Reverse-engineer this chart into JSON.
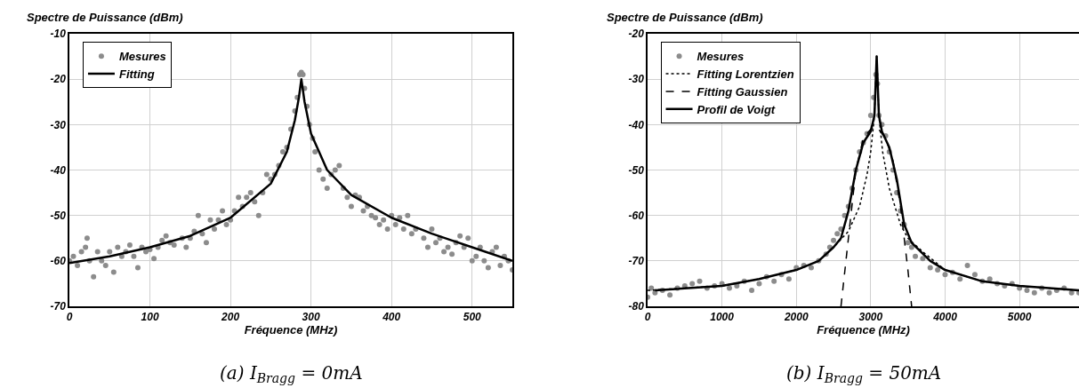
{
  "chart_data": [
    {
      "type": "scatter",
      "ylabel": "Spectre de Puissance (dBm)",
      "xlabel": "Fréquence (MHz)",
      "annotations": [
        "(a) I$_{Bragg}$ = 0mA"
      ],
      "xlim": [
        0,
        550
      ],
      "xticks": [
        0,
        100,
        200,
        300,
        400,
        500
      ],
      "ylim": [
        -70,
        -10
      ],
      "yticks": [
        -70,
        -60,
        -50,
        -40,
        -30,
        -20,
        -10
      ],
      "grid": true,
      "legend": "top left",
      "series": [
        {
          "name": "Mesures",
          "type": "scatter",
          "marker": "circle",
          "color": "#8c8c8c",
          "x": [
            0,
            5,
            10,
            15,
            20,
            22,
            25,
            30,
            35,
            40,
            45,
            50,
            55,
            60,
            65,
            70,
            75,
            80,
            85,
            90,
            95,
            100,
            105,
            110,
            115,
            120,
            125,
            130,
            140,
            145,
            150,
            155,
            160,
            165,
            170,
            175,
            180,
            185,
            190,
            195,
            200,
            205,
            210,
            215,
            220,
            225,
            230,
            235,
            240,
            245,
            250,
            255,
            260,
            265,
            270,
            275,
            280,
            283,
            286,
            288,
            290,
            292,
            295,
            298,
            302,
            305,
            310,
            315,
            320,
            325,
            330,
            335,
            340,
            345,
            350,
            355,
            360,
            365,
            370,
            375,
            380,
            385,
            390,
            395,
            400,
            405,
            410,
            415,
            420,
            425,
            430,
            440,
            445,
            450,
            455,
            460,
            465,
            470,
            475,
            480,
            485,
            490,
            495,
            500,
            505,
            510,
            515,
            520,
            525,
            530,
            535,
            540,
            545,
            550
          ],
          "values": [
            -60,
            -59,
            -61,
            -58,
            -57,
            -55,
            -60,
            -63.5,
            -58,
            -60,
            -61,
            -58,
            -62.5,
            -57,
            -59,
            -58,
            -56.5,
            -59,
            -61.5,
            -57,
            -58,
            -57.5,
            -59.5,
            -57,
            -55.5,
            -54.5,
            -56,
            -56.5,
            -55,
            -57,
            -55,
            -53.5,
            -50,
            -54,
            -56,
            -51,
            -53,
            -51,
            -49,
            -52,
            -51,
            -49,
            -46,
            -48,
            -46,
            -45,
            -47,
            -50,
            -45,
            -41,
            -42,
            -41,
            -39,
            -36,
            -35,
            -31,
            -27,
            -24,
            -19,
            -18.5,
            -19,
            -22,
            -26,
            -30,
            -33,
            -36,
            -40,
            -42,
            -44,
            -41,
            -40,
            -39,
            -44,
            -46,
            -48,
            -45.5,
            -46,
            -49,
            -48,
            -50,
            -50.5,
            -52,
            -51,
            -53,
            -50,
            -52,
            -50.5,
            -53,
            -50,
            -54,
            -53,
            -55,
            -57,
            -53,
            -56,
            -55,
            -58,
            -57,
            -58.5,
            -56,
            -54.5,
            -57,
            -55,
            -60,
            -59,
            -57,
            -60,
            -61.5,
            -58,
            -57,
            -61,
            -59,
            -60,
            -62
          ]
        },
        {
          "name": "Fitting",
          "type": "line",
          "marker": "none",
          "line_style": "solid",
          "color": "#000000",
          "x": [
            0,
            50,
            100,
            150,
            200,
            250,
            270,
            280,
            285,
            288,
            292,
            300,
            320,
            350,
            400,
            450,
            500,
            550
          ],
          "values": [
            -60.5,
            -59,
            -57,
            -54.5,
            -50.5,
            -43,
            -36,
            -29,
            -24,
            -20,
            -25,
            -32,
            -40,
            -45.5,
            -50.5,
            -54,
            -57,
            -60
          ]
        }
      ]
    },
    {
      "type": "scatter",
      "ylabel": "Spectre de Puissance (dBm)",
      "xlabel": "Fréquence (MHz)",
      "annotations": [
        "(b) I$_{Bragg}$ = 50mA"
      ],
      "xlim": [
        0,
        5800
      ],
      "xticks": [
        0,
        1000,
        2000,
        3000,
        4000,
        5000
      ],
      "ylim": [
        -80,
        -20
      ],
      "yticks": [
        -80,
        -70,
        -60,
        -50,
        -40,
        -30,
        -20
      ],
      "grid": true,
      "legend": "top left",
      "series": [
        {
          "name": "Mesures",
          "type": "scatter",
          "marker": "circle",
          "color": "#8c8c8c",
          "x": [
            0,
            50,
            100,
            200,
            300,
            400,
            500,
            600,
            700,
            800,
            900,
            1000,
            1100,
            1200,
            1300,
            1400,
            1500,
            1600,
            1700,
            1800,
            1900,
            2000,
            2100,
            2200,
            2300,
            2400,
            2450,
            2500,
            2550,
            2600,
            2650,
            2700,
            2750,
            2800,
            2850,
            2900,
            2950,
            3000,
            3040,
            3070,
            3090,
            3110,
            3150,
            3200,
            3250,
            3300,
            3350,
            3400,
            3450,
            3500,
            3550,
            3600,
            3700,
            3800,
            3900,
            4000,
            4100,
            4200,
            4300,
            4400,
            4500,
            4600,
            4700,
            4800,
            4900,
            5000,
            5100,
            5200,
            5300,
            5400,
            5500,
            5600,
            5700,
            5800
          ],
          "values": [
            -78,
            -76,
            -77,
            -76.5,
            -77.5,
            -76,
            -75.5,
            -75,
            -74.5,
            -76,
            -75.5,
            -75,
            -76,
            -75.5,
            -74.5,
            -76.5,
            -75,
            -73.5,
            -74.5,
            -73,
            -74,
            -71.5,
            -71,
            -71.5,
            -70,
            -68.5,
            -67,
            -65.5,
            -64,
            -63,
            -60,
            -58,
            -54,
            -50,
            -46,
            -44,
            -42,
            -38,
            -34,
            -29,
            -31,
            -38,
            -40,
            -42.5,
            -46,
            -50,
            -55,
            -59,
            -62,
            -66,
            -67,
            -69,
            -69.5,
            -71.5,
            -72,
            -73,
            -72.5,
            -74,
            -71,
            -73,
            -74.5,
            -74,
            -75,
            -75.5,
            -75,
            -76,
            -76.5,
            -77,
            -76,
            -77,
            -76.5,
            -76,
            -77,
            -77
          ]
        },
        {
          "name": "Fitting Lorentzien",
          "type": "line",
          "marker": "none",
          "line_style": "dotted",
          "color": "#000000",
          "x": [
            0,
            1000,
            1500,
            2000,
            2300,
            2500,
            2700,
            2850,
            2950,
            3000,
            3050,
            3080,
            3110,
            3160,
            3250,
            3400,
            3500,
            3700,
            4000,
            4500,
            5000,
            5800
          ],
          "values": [
            -76.5,
            -75.5,
            -74,
            -72,
            -70,
            -67,
            -63.5,
            -58,
            -51,
            -46,
            -38,
            -25,
            -38,
            -46,
            -54,
            -62,
            -65,
            -68,
            -72,
            -74.5,
            -75.5,
            -76.5
          ]
        },
        {
          "name": "Fitting Gaussien",
          "type": "line",
          "marker": "none",
          "line_style": "dashed",
          "color": "#000000",
          "x": [
            2600,
            2700,
            2800,
            2900,
            3000,
            3080,
            3200,
            3300,
            3400,
            3500,
            3550
          ],
          "values": [
            -80,
            -65,
            -50,
            -43,
            -41,
            -40.5,
            -43,
            -48,
            -58,
            -72,
            -80
          ]
        },
        {
          "name": "Profil de Voigt",
          "type": "line",
          "marker": "none",
          "line_style": "solid",
          "color": "#000000",
          "x": [
            100,
            1000,
            1500,
            2000,
            2300,
            2500,
            2600,
            2700,
            2800,
            2900,
            3000,
            3050,
            3080,
            3110,
            3150,
            3250,
            3350,
            3450,
            3550,
            3800,
            4000,
            4500,
            5000,
            5800
          ],
          "values": [
            -76.5,
            -75.5,
            -74,
            -72,
            -70,
            -67,
            -65,
            -59,
            -50,
            -44,
            -41.5,
            -38,
            -25,
            -38,
            -41.5,
            -45,
            -52,
            -62,
            -66,
            -70,
            -72,
            -74.5,
            -75.5,
            -76.5
          ]
        }
      ]
    }
  ]
}
